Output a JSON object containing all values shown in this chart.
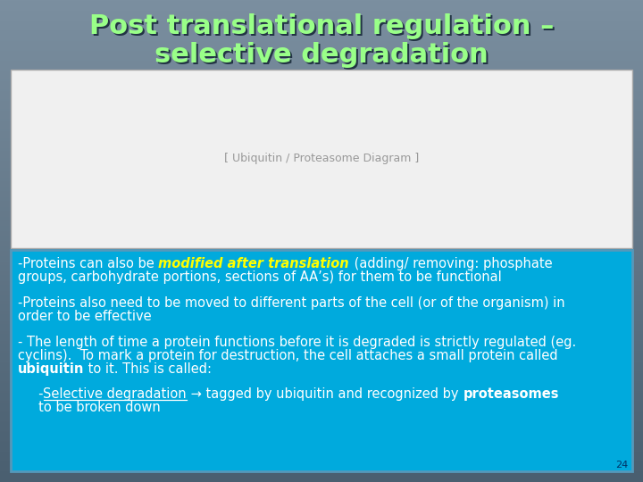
{
  "title_line1": "Post translational regulation –",
  "title_line2": "selective degradation",
  "title_color": "#99ff88",
  "title_shadow_color": "#223344",
  "title_fontsize": 22,
  "bg_top": "#7b8fa0",
  "bg_bottom": "#4a5f70",
  "content_bg": "#00aadd",
  "content_border": "#5599bb",
  "image_bg": "#f0f0f0",
  "text_color": "#ffffff",
  "highlight_color": "#ffff00",
  "font_size_body": 10.5,
  "slide_number": "24",
  "p1_pre": "-Proteins can also be ",
  "p1_hi": "modified after translation",
  "p1_post1": " (adding/ removing: phosphate",
  "p1_post2": "groups, carbohydrate portions, sections of AA’s) for them to be functional",
  "p2_line1": "-Proteins also need to be moved to different parts of the cell (or of the organism) in",
  "p2_line2": "order to be effective",
  "p3_line1": "- The length of time a protein functions before it is degraded is strictly regulated (eg.",
  "p3_line2": "cyclins).  To mark a protein for destruction, the cell attaches a small protein called",
  "p3_bold": "ubiquitin",
  "p3_rest": " to it. This is called:",
  "p4_dash": "     -",
  "p4_sel": "Selective degradation",
  "p4_mid": " → tagged by ubiquitin and recognized by ",
  "p4_bold": "proteasomes",
  "p5": "     to be broken down"
}
